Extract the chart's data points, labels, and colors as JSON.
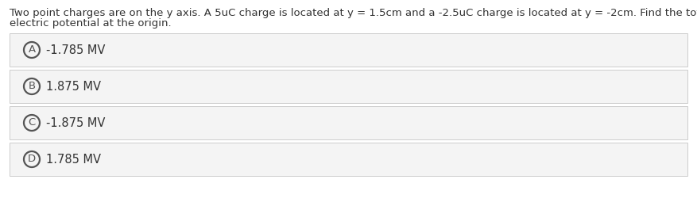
{
  "title_line1": "Two point charges are on the y axis. A 5uC charge is located at y = 1.5cm and a -2.5uC charge is located at y = -2cm. Find the total",
  "title_line2": "electric potential at the origin.",
  "options": [
    {
      "label": "A",
      "text": "-1.785 MV"
    },
    {
      "label": "B",
      "text": "1.875 MV"
    },
    {
      "label": "C",
      "text": "-1.875 MV"
    },
    {
      "label": "D",
      "text": "1.785 MV"
    }
  ],
  "bg_color": "#ffffff",
  "option_bg_color": "#f4f4f4",
  "option_border_color": "#cccccc",
  "text_color": "#333333",
  "circle_edge_color": "#555555",
  "title_fontsize": 9.5,
  "option_fontsize": 10.5,
  "label_fontsize": 9.5,
  "fig_width": 8.77,
  "fig_height": 2.6,
  "dpi": 100
}
